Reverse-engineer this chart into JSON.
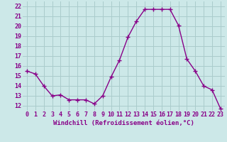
{
  "x": [
    0,
    1,
    2,
    3,
    4,
    5,
    6,
    7,
    8,
    9,
    10,
    11,
    12,
    13,
    14,
    15,
    16,
    17,
    18,
    19,
    20,
    21,
    22,
    23
  ],
  "y": [
    15.5,
    15.2,
    14.0,
    13.0,
    13.1,
    12.6,
    12.6,
    12.6,
    12.2,
    13.0,
    14.9,
    16.6,
    18.9,
    20.5,
    21.7,
    21.7,
    21.7,
    21.7,
    20.1,
    16.7,
    15.5,
    14.0,
    13.6,
    11.7
  ],
  "line_color": "#880088",
  "marker": "+",
  "markersize": 4,
  "markeredgewidth": 1.0,
  "linewidth": 1.0,
  "background_color": "#cce8e8",
  "grid_color": "#aacccc",
  "xlabel": "Windchill (Refroidissement éolien,°C)",
  "xlabel_fontsize": 6.5,
  "ylim": [
    11.5,
    22.5
  ],
  "yticks": [
    12,
    13,
    14,
    15,
    16,
    17,
    18,
    19,
    20,
    21,
    22
  ],
  "xticks": [
    0,
    1,
    2,
    3,
    4,
    5,
    6,
    7,
    8,
    9,
    10,
    11,
    12,
    13,
    14,
    15,
    16,
    17,
    18,
    19,
    20,
    21,
    22,
    23
  ],
  "tick_fontsize": 6.0,
  "xlim": [
    -0.5,
    23.5
  ]
}
